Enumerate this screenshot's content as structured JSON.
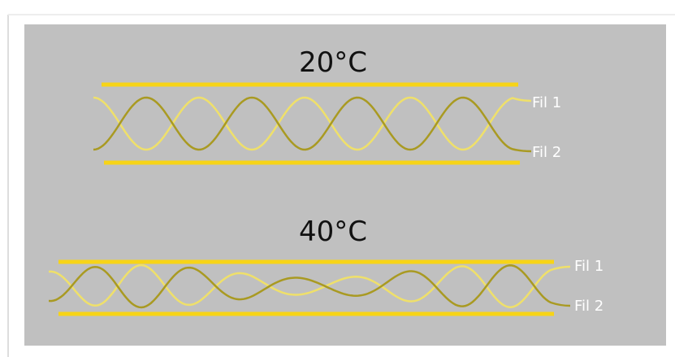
{
  "panels": [
    {
      "title": "20°C",
      "wire_1": "Fil 1",
      "wire_2": "Fil 2"
    },
    {
      "title": "40°C",
      "wire_1": "Fil 1",
      "wire_2": "Fil 2"
    }
  ]
}
